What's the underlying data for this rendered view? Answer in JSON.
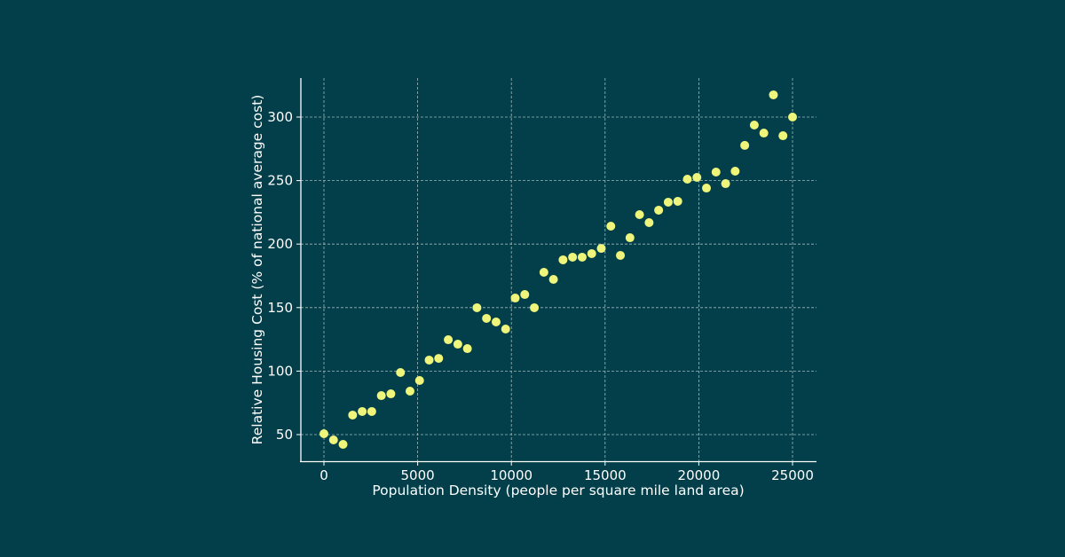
{
  "colors": {
    "background": "#023f4a",
    "point": "#eef57a",
    "axis": "#ffffff",
    "grid": "#9fb8bb"
  },
  "chart_data": {
    "type": "scatter",
    "title": "",
    "xlabel": "Population Density (people per square mile land area)",
    "ylabel": "Relative Housing Cost (% of national average cost)",
    "xlim": [
      -1200,
      26300
    ],
    "ylim": [
      33,
      330
    ],
    "grid": true,
    "xticks": [
      0,
      5000,
      10000,
      15000,
      20000,
      25000
    ],
    "yticks": [
      50,
      100,
      150,
      200,
      250,
      300
    ],
    "x": [
      0,
      510,
      1020,
      1531,
      2041,
      2551,
      3061,
      3571,
      4082,
      4592,
      5102,
      5612,
      6122,
      6633,
      7143,
      7653,
      8163,
      8673,
      9184,
      9694,
      10204,
      10714,
      11224,
      11735,
      12245,
      12755,
      13265,
      13776,
      14286,
      14796,
      15306,
      15816,
      16327,
      16837,
      17347,
      17857,
      18367,
      18878,
      19388,
      19898,
      20408,
      20918,
      21429,
      21939,
      22449,
      22959,
      23469,
      23980,
      24490,
      25000
    ],
    "y": [
      50.7,
      45.8,
      42.3,
      65.4,
      68.2,
      68.2,
      80.7,
      82.1,
      98.9,
      84.2,
      92.6,
      108.7,
      110,
      124.7,
      121.2,
      117.7,
      149.9,
      141.5,
      138.7,
      133.1,
      157.5,
      160.3,
      149.9,
      177.8,
      172.2,
      187.6,
      189.7,
      189.7,
      192.5,
      196.6,
      214.1,
      191.1,
      205,
      223.2,
      216.9,
      226.7,
      233,
      233.7,
      251.1,
      252.5,
      244.1,
      256.7,
      247.6,
      257.4,
      277.7,
      293.7,
      287.4,
      317.5,
      285.3,
      300
    ]
  }
}
